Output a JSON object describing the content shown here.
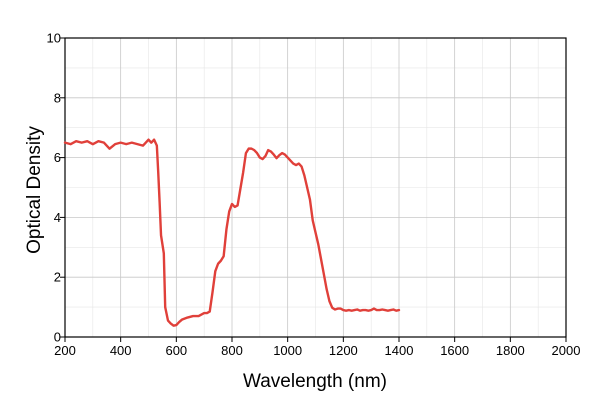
{
  "chart_data": {
    "type": "line",
    "title": "",
    "xlabel": "Wavelength (nm)",
    "ylabel": "Optical Density",
    "xlim": [
      200,
      2000
    ],
    "ylim": [
      0,
      10
    ],
    "xticks": [
      200,
      400,
      600,
      800,
      1000,
      1200,
      1400,
      1600,
      1800,
      2000
    ],
    "yticks": [
      0,
      2,
      4,
      6,
      8,
      10
    ],
    "grid": true,
    "legend": "none",
    "series_color": "#e0403a",
    "series": [
      {
        "x": [
          200,
          220,
          240,
          260,
          280,
          300,
          320,
          340,
          360,
          380,
          400,
          420,
          440,
          460,
          480,
          500,
          510,
          520,
          530,
          535,
          540,
          545,
          550,
          555,
          560,
          570,
          580,
          590,
          600,
          610,
          620,
          640,
          660,
          680,
          700,
          710,
          720,
          730,
          740,
          750,
          760,
          770,
          780,
          790,
          800,
          810,
          820,
          830,
          840,
          850,
          860,
          870,
          880,
          890,
          900,
          910,
          920,
          930,
          940,
          950,
          960,
          970,
          980,
          990,
          1000,
          1010,
          1020,
          1030,
          1040,
          1050,
          1060,
          1070,
          1080,
          1090,
          1100,
          1110,
          1120,
          1130,
          1140,
          1150,
          1160,
          1170,
          1180,
          1190,
          1200,
          1210,
          1220,
          1230,
          1240,
          1250,
          1260,
          1270,
          1280,
          1290,
          1300,
          1310,
          1320,
          1330,
          1340,
          1350,
          1360,
          1370,
          1380,
          1390,
          1400
        ],
        "y": [
          6.5,
          6.45,
          6.55,
          6.5,
          6.55,
          6.45,
          6.55,
          6.5,
          6.3,
          6.45,
          6.5,
          6.45,
          6.5,
          6.45,
          6.4,
          6.6,
          6.5,
          6.6,
          6.4,
          5.5,
          4.5,
          3.4,
          3.1,
          2.8,
          1.0,
          0.55,
          0.45,
          0.38,
          0.4,
          0.5,
          0.58,
          0.65,
          0.7,
          0.7,
          0.8,
          0.8,
          0.85,
          1.5,
          2.2,
          2.45,
          2.55,
          2.7,
          3.6,
          4.2,
          4.45,
          4.35,
          4.4,
          4.95,
          5.5,
          6.15,
          6.3,
          6.3,
          6.25,
          6.15,
          6.0,
          5.95,
          6.05,
          6.25,
          6.2,
          6.1,
          5.98,
          6.08,
          6.15,
          6.1,
          6.0,
          5.9,
          5.8,
          5.75,
          5.8,
          5.7,
          5.4,
          5.0,
          4.6,
          3.9,
          3.5,
          3.1,
          2.6,
          2.1,
          1.6,
          1.2,
          0.98,
          0.92,
          0.95,
          0.95,
          0.9,
          0.88,
          0.9,
          0.88,
          0.9,
          0.92,
          0.88,
          0.9,
          0.9,
          0.88,
          0.9,
          0.95,
          0.9,
          0.9,
          0.92,
          0.9,
          0.88,
          0.9,
          0.92,
          0.88,
          0.9
        ]
      }
    ]
  }
}
